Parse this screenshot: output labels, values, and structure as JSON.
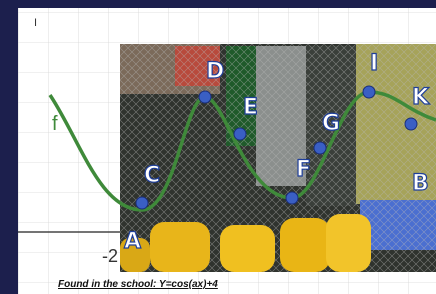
{
  "slide": {
    "cursor_mark": "I",
    "function_label": "f",
    "axis_label": "-2",
    "caption": "Found in the school: Y=cos(ax)+4"
  },
  "points": [
    {
      "label": "A"
    },
    {
      "label": "B"
    },
    {
      "label": "C"
    },
    {
      "label": "D"
    },
    {
      "label": "E"
    },
    {
      "label": "F"
    },
    {
      "label": "G"
    },
    {
      "label": "I"
    },
    {
      "label": "K"
    }
  ]
}
